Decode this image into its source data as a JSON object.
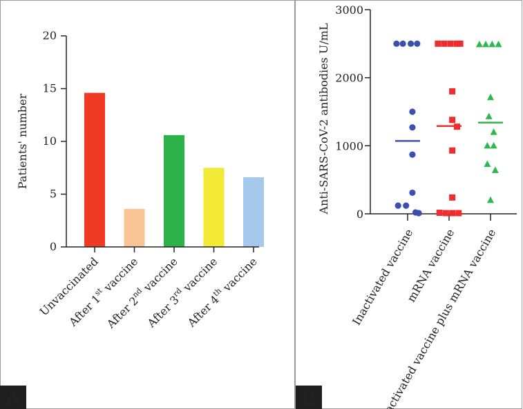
{
  "chart_data": [
    {
      "panel": "A",
      "type": "bar",
      "ylabel": "Patients' number",
      "xlabel": "",
      "ylim": [
        0,
        20
      ],
      "yticks": [
        0,
        5,
        10,
        15,
        20
      ],
      "categories": [
        {
          "base": "Unvaccinated",
          "sup": "",
          "tail": ""
        },
        {
          "base": "After 1",
          "sup": "st",
          "tail": " vaccine"
        },
        {
          "base": "After 2",
          "sup": "nd",
          "tail": " vaccine"
        },
        {
          "base": "After 3",
          "sup": "rd",
          "tail": " vaccine"
        },
        {
          "base": "After 4",
          "sup": "th",
          "tail": " vaccine"
        }
      ],
      "values": [
        14.6,
        3.6,
        10.6,
        7.5,
        6.6
      ],
      "colors": [
        "#ef3b24",
        "#f8c493",
        "#2db24a",
        "#f2ea36",
        "#a4c9ec"
      ]
    },
    {
      "panel": "B",
      "type": "scatter",
      "ylabel": "Anti-SARS-CoV-2 antibodies U/mL",
      "ylim": [
        0,
        3000
      ],
      "yticks": [
        0,
        1000,
        2000,
        3000
      ],
      "categories": [
        "Inactivated vaccine",
        "mRNA vaccine",
        "Inactivated vaccine plus mRNA vaccine"
      ],
      "series": [
        {
          "name": "Inactivated vaccine",
          "marker": "circle",
          "color": "#3b4fb0",
          "points": [
            [
              -0.35,
              2500
            ],
            [
              -0.15,
              2500
            ],
            [
              0.1,
              2500
            ],
            [
              0.3,
              2500
            ],
            [
              0.15,
              1500
            ],
            [
              0.15,
              1270
            ],
            [
              0.15,
              870
            ],
            [
              0.15,
              310
            ],
            [
              -0.3,
              120
            ],
            [
              -0.05,
              120
            ],
            [
              0.25,
              20
            ],
            [
              0.35,
              10
            ]
          ],
          "median": 1070
        },
        {
          "name": "mRNA vaccine",
          "marker": "square",
          "color": "#ee2e2e",
          "points": [
            [
              -0.35,
              2500
            ],
            [
              -0.15,
              2500
            ],
            [
              0.05,
              2500
            ],
            [
              0.25,
              2500
            ],
            [
              0.35,
              2500
            ],
            [
              0.1,
              1800
            ],
            [
              0.1,
              1380
            ],
            [
              0.25,
              1280
            ],
            [
              0.1,
              930
            ],
            [
              0.1,
              240
            ],
            [
              -0.3,
              15
            ],
            [
              -0.1,
              10
            ],
            [
              0.1,
              10
            ],
            [
              0.3,
              10
            ]
          ],
          "median": 1290
        },
        {
          "name": "Inactivated vaccine plus mRNA vaccine",
          "marker": "triangle",
          "color": "#2fb84f",
          "points": [
            [
              -0.35,
              2490
            ],
            [
              -0.15,
              2490
            ],
            [
              0.05,
              2490
            ],
            [
              0.25,
              2490
            ],
            [
              0.0,
              1710
            ],
            [
              -0.05,
              1430
            ],
            [
              0.1,
              1200
            ],
            [
              0.1,
              1000
            ],
            [
              -0.1,
              1000
            ],
            [
              -0.1,
              730
            ],
            [
              0.15,
              640
            ],
            [
              0.0,
              200
            ]
          ],
          "median": 1340
        }
      ]
    }
  ]
}
